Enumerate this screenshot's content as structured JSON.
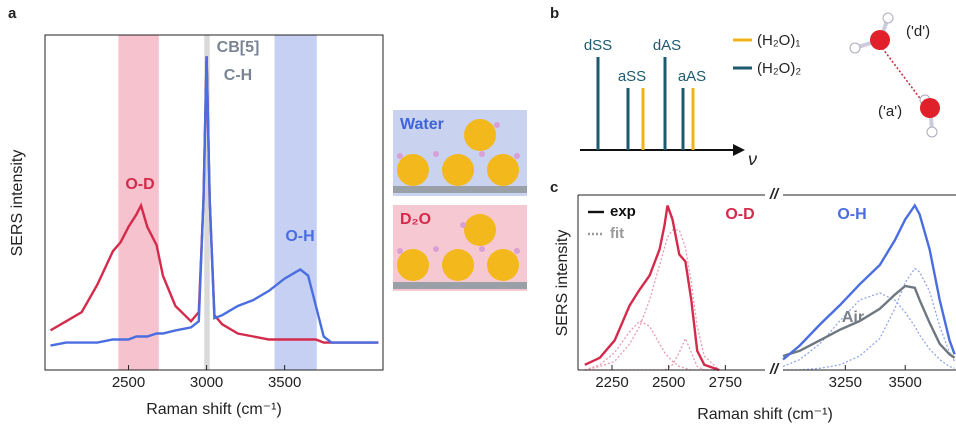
{
  "panels": [
    "a",
    "b",
    "c"
  ],
  "chart_data": [
    {
      "type": "line",
      "xlabel": "Raman shift (cm⁻¹)",
      "ylabel": "SERS intensity",
      "xlim": [
        1965,
        4130
      ],
      "ylim": [
        -0.08,
        1.02
      ],
      "xticks": [
        2500,
        3000,
        3500
      ],
      "bands": [
        {
          "range": [
            2435,
            2694
          ],
          "color": "#f4b3c0"
        },
        {
          "range": [
            2985,
            3020
          ],
          "color": "#cfcfcf"
        },
        {
          "range": [
            3435,
            3706
          ],
          "color": "#b7c4f0"
        }
      ],
      "x": [
        2000,
        2100,
        2200,
        2300,
        2400,
        2450,
        2500,
        2550,
        2580,
        2620,
        2680,
        2720,
        2800,
        2900,
        2950,
        2980,
        3000,
        3020,
        3050,
        3100,
        3200,
        3300,
        3400,
        3500,
        3600,
        3650,
        3700,
        3750,
        3800,
        4100
      ],
      "series": [
        {
          "color": "#d42a4c",
          "values": [
            0.05,
            0.08,
            0.11,
            0.2,
            0.31,
            0.34,
            0.39,
            0.43,
            0.46,
            0.39,
            0.33,
            0.23,
            0.13,
            0.08,
            0.11,
            0.48,
            0.95,
            0.48,
            0.1,
            0.07,
            0.04,
            0.03,
            0.02,
            0.02,
            0.02,
            0.02,
            0.02,
            0.01,
            0.01,
            0.01
          ]
        },
        {
          "color": "#4a6ee0",
          "values": [
            0,
            0.01,
            0.01,
            0.01,
            0.02,
            0.02,
            0.02,
            0.03,
            0.03,
            0.03,
            0.04,
            0.04,
            0.05,
            0.06,
            0.08,
            0.48,
            0.95,
            0.48,
            0.09,
            0.1,
            0.13,
            0.15,
            0.18,
            0.22,
            0.25,
            0.23,
            0.13,
            0.03,
            0.01,
            0.01
          ]
        }
      ],
      "annotations": [
        {
          "text": "O-D",
          "color": "#d42a4c"
        },
        {
          "text": "CB[5]",
          "color": "#7a8594"
        },
        {
          "text": "C-H",
          "color": "#7a8594"
        },
        {
          "text": "O-H",
          "color": "#4a6ee0"
        }
      ],
      "insets": [
        {
          "text": "Water",
          "color": "#3f63d8"
        },
        {
          "text": "D₂O",
          "color": "#d42a4c"
        }
      ]
    },
    {
      "type": "line",
      "xlabel": "Raman shift (cm⁻¹)",
      "ylabel": "SERS intensity",
      "xlim": [
        2100,
        2925
      ],
      "ylim": [
        0,
        1
      ],
      "xticks": [
        2250,
        2500,
        2750
      ],
      "legend": [
        {
          "label": "exp",
          "color": "#111111",
          "dash": false
        },
        {
          "label": "fit",
          "color": "#9a9a9a",
          "dash": true
        }
      ],
      "x": [
        2130,
        2196,
        2262,
        2328,
        2372,
        2416,
        2460,
        2482,
        2495,
        2517,
        2547,
        2574,
        2600,
        2626,
        2657,
        2723
      ],
      "series": [
        {
          "color": "#e89aae",
          "dash": true,
          "values": [
            0,
            0.02,
            0.05,
            0.15,
            0.25,
            0.4,
            0.6,
            0.7,
            0.76,
            0.8,
            0.8,
            0.7,
            0.5,
            0.25,
            0.08,
            0
          ]
        },
        {
          "color": "#e89aae",
          "dash": true,
          "values": [
            0,
            0.03,
            0.1,
            0.22,
            0.28,
            0.25,
            0.15,
            0.1,
            0.08,
            0.05,
            0.02,
            0.01,
            0,
            0,
            0,
            0
          ]
        },
        {
          "color": "#e89aae",
          "dash": true,
          "values": [
            0,
            0,
            0,
            0,
            0,
            0,
            0,
            0,
            0.01,
            0.03,
            0.1,
            0.18,
            0.1,
            0.02,
            0,
            0
          ]
        },
        {
          "color": "#d42a4c",
          "dash": false,
          "values": [
            0.03,
            0.07,
            0.17,
            0.37,
            0.46,
            0.54,
            0.69,
            0.83,
            0.94,
            0.86,
            0.66,
            0.62,
            0.4,
            0.11,
            0.03,
            0
          ]
        }
      ],
      "annotations": [
        {
          "text": "O-D",
          "color": "#d42a4c"
        }
      ],
      "break_mark": "//"
    },
    {
      "type": "line",
      "xlim": [
        2990,
        3712
      ],
      "ylim": [
        0,
        1
      ],
      "xticks": [
        3250,
        3500
      ],
      "x": [
        2990,
        3060,
        3144,
        3227,
        3310,
        3394,
        3456,
        3500,
        3540,
        3560,
        3602,
        3644,
        3685,
        3706
      ],
      "series": [
        {
          "color": "#93a6e8",
          "dash": true,
          "values": [
            0.02,
            0.06,
            0.15,
            0.28,
            0.4,
            0.44,
            0.4,
            0.33,
            0.25,
            0.2,
            0.12,
            0.06,
            0.02,
            0.01
          ]
        },
        {
          "color": "#93a6e8",
          "dash": true,
          "values": [
            0,
            0,
            0.01,
            0.03,
            0.08,
            0.18,
            0.35,
            0.5,
            0.58,
            0.56,
            0.45,
            0.25,
            0.1,
            0.05
          ]
        },
        {
          "color": "#6f7780",
          "dash": false,
          "values": [
            0.08,
            0.11,
            0.17,
            0.23,
            0.28,
            0.35,
            0.43,
            0.48,
            0.47,
            0.4,
            0.27,
            0.15,
            0.09,
            0.07
          ]
        },
        {
          "color": "#4a6ee0",
          "dash": false,
          "values": [
            0.06,
            0.14,
            0.26,
            0.37,
            0.49,
            0.6,
            0.74,
            0.86,
            0.94,
            0.89,
            0.69,
            0.4,
            0.17,
            0.09
          ]
        }
      ],
      "annotations": [
        {
          "text": "O-H",
          "color": "#4a6ee0"
        },
        {
          "text": "Air",
          "color": "#7a8088"
        }
      ]
    }
  ],
  "diagram": {
    "peaks": [
      "dSS",
      "aSS",
      "dAS",
      "aAS"
    ],
    "legend": [
      "(H₂O)₁",
      "(H₂O)₂"
    ],
    "axis_symbol": "ν",
    "molecule_labels": [
      "('d')",
      "('a')"
    ]
  }
}
